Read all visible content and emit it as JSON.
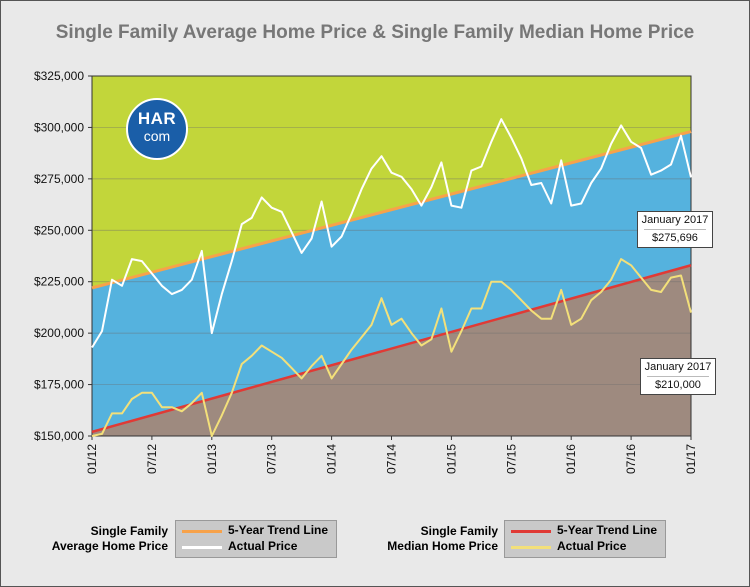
{
  "title": "Single Family Average Home Price & Single Family Median Home Price",
  "logo": {
    "top": "HAR",
    "bottom": "com"
  },
  "colors": {
    "top_region": "#c2d63a",
    "middle_region": "#55b2de",
    "bottom_region": "#9e8a7f",
    "avg_trend": "#f7a24a",
    "median_trend": "#e03a35",
    "avg_actual": "#ffffff",
    "median_actual": "#f3e07a"
  },
  "callouts": [
    {
      "label": "January 2017",
      "value": "$275,696"
    },
    {
      "label": "January 2017",
      "value": "$210,000"
    }
  ],
  "legend": {
    "avg": {
      "name_line1": "Single Family",
      "name_line2": "Average Home Price",
      "trend_label": "5-Year Trend Line",
      "actual_label": "Actual Price"
    },
    "median": {
      "name_line1": "Single Family",
      "name_line2": "Median Home Price",
      "trend_label": "5-Year Trend Line",
      "actual_label": "Actual Price"
    }
  },
  "chart_data": {
    "type": "line",
    "title": "Single Family Average Home Price & Single Family Median Home Price",
    "xlabel": "",
    "ylabel": "",
    "ylim": [
      150000,
      325000
    ],
    "yticks": [
      "$150,000",
      "$175,000",
      "$200,000",
      "$225,000",
      "$250,000",
      "$275,000",
      "$300,000",
      "$325,000"
    ],
    "ytick_values": [
      150000,
      175000,
      200000,
      225000,
      250000,
      275000,
      300000,
      325000
    ],
    "xticks": [
      "01/12",
      "07/12",
      "01/13",
      "07/13",
      "01/14",
      "07/14",
      "01/15",
      "07/15",
      "01/16",
      "07/16",
      "01/17"
    ],
    "x_start": "01/12",
    "x_end": "01/17",
    "grid": true,
    "legend_position": "bottom",
    "series": [
      {
        "name": "Single Family Average Home Price Actual Price",
        "kind": "actual",
        "values": [
          193000,
          201000,
          226000,
          223000,
          236000,
          235000,
          229000,
          223000,
          219000,
          221000,
          226000,
          240000,
          200000,
          219000,
          235000,
          253000,
          256000,
          266000,
          261000,
          259000,
          249000,
          239000,
          246000,
          264000,
          242000,
          247000,
          258000,
          270000,
          280000,
          286000,
          278000,
          276000,
          270000,
          262000,
          271000,
          283000,
          262000,
          261000,
          279000,
          281000,
          293000,
          304000,
          295000,
          285000,
          272000,
          273000,
          263000,
          284000,
          262000,
          263000,
          273000,
          280000,
          292000,
          301000,
          293000,
          290000,
          277000,
          279000,
          282000,
          296000,
          275696
        ]
      },
      {
        "name": "Single Family Average Home Price 5-Year Trend Line",
        "kind": "trend",
        "values": [
          222000,
          298000
        ]
      },
      {
        "name": "Single Family Median Home Price Actual Price",
        "kind": "actual",
        "values": [
          150000,
          151000,
          161000,
          161000,
          168000,
          171000,
          171000,
          164000,
          164000,
          162000,
          166000,
          171000,
          150000,
          160000,
          171000,
          185000,
          189000,
          194000,
          191000,
          188000,
          183000,
          178000,
          184000,
          189000,
          178000,
          185000,
          192000,
          198000,
          204000,
          217000,
          204000,
          207000,
          200000,
          194000,
          197000,
          212000,
          191000,
          201000,
          212000,
          212000,
          225000,
          225000,
          221000,
          216000,
          211000,
          207000,
          207000,
          221000,
          204000,
          207000,
          216000,
          220000,
          226000,
          236000,
          233000,
          227000,
          221000,
          220000,
          227000,
          228000,
          210000
        ]
      },
      {
        "name": "Single Family Median Home Price 5-Year Trend Line",
        "kind": "trend",
        "values": [
          152000,
          233000
        ]
      }
    ]
  }
}
